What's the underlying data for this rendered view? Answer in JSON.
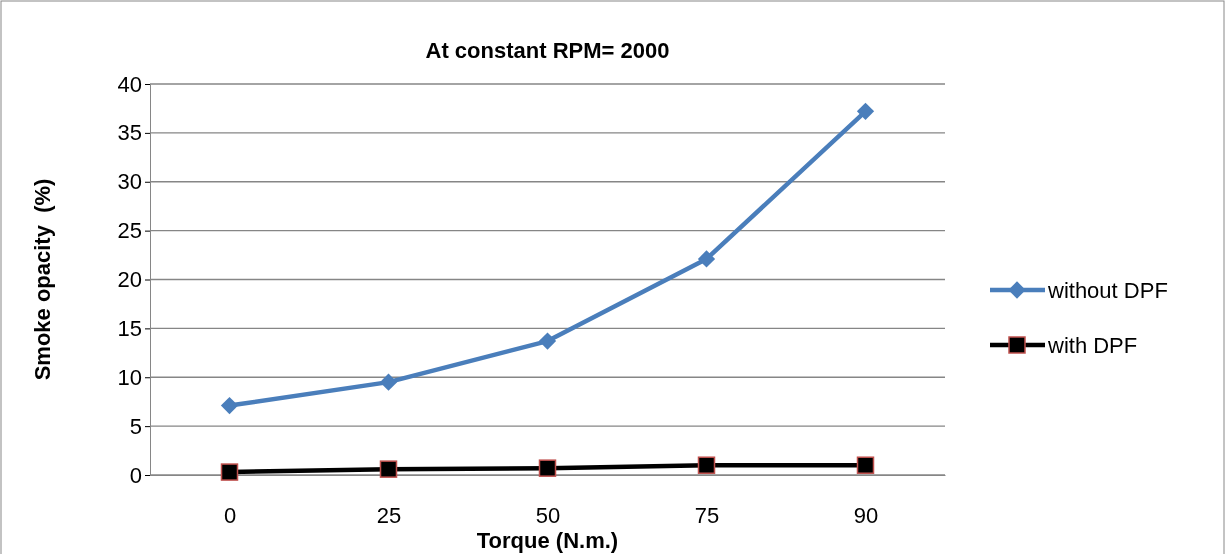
{
  "chart_data": {
    "type": "line",
    "title": "At constant RPM= 2000",
    "xlabel": "Torque (N.m.)",
    "ylabel": "Smoke opacity  (%)",
    "categories": [
      "0",
      "25",
      "50",
      "75",
      "90"
    ],
    "series": [
      {
        "name": "without DPF",
        "color": "#4a7ebb",
        "marker": "diamond",
        "values": [
          7.1,
          9.5,
          13.7,
          22.1,
          37.2
        ]
      },
      {
        "name": "with DPF",
        "color": "#000000",
        "marker": "square",
        "values": [
          0.3,
          0.6,
          0.7,
          1.0,
          1.0
        ]
      }
    ],
    "ylim": [
      0,
      40
    ],
    "yticks": [
      0,
      5,
      10,
      15,
      20,
      25,
      30,
      35,
      40
    ],
    "grid": "y",
    "legend": "right"
  }
}
